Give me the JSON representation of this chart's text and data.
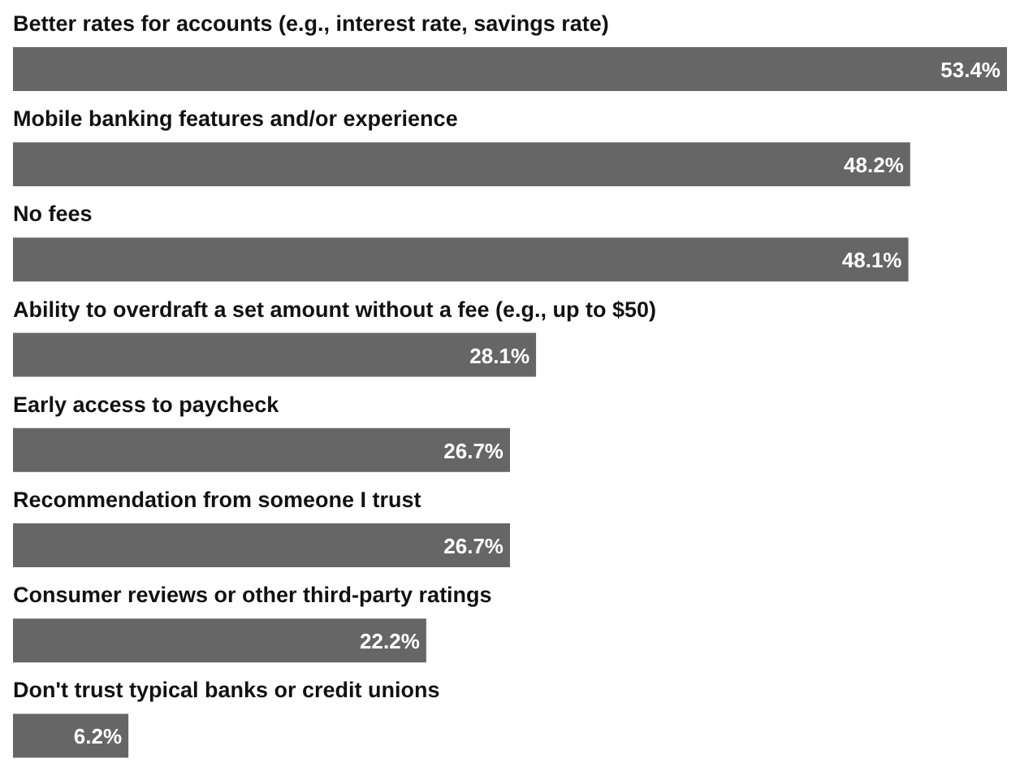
{
  "chart_data": {
    "type": "bar",
    "orientation": "horizontal",
    "color": "#666666",
    "categories": [
      "Better rates for accounts (e.g., interest rate, savings rate)",
      "Mobile banking features and/or experience",
      "No fees",
      "Ability to overdraft a set amount without a fee (e.g., up to $50)",
      "Early access to paycheck",
      "Recommendation from someone I trust",
      "Consumer reviews or other third-party ratings",
      "Don't trust typical banks or credit unions"
    ],
    "values": [
      53.4,
      48.2,
      48.1,
      28.1,
      26.7,
      26.7,
      22.2,
      6.2
    ],
    "value_labels": [
      "53.4%",
      "48.2%",
      "48.1%",
      "28.1%",
      "26.7%",
      "26.7%",
      "22.2%",
      "6.2%"
    ]
  }
}
